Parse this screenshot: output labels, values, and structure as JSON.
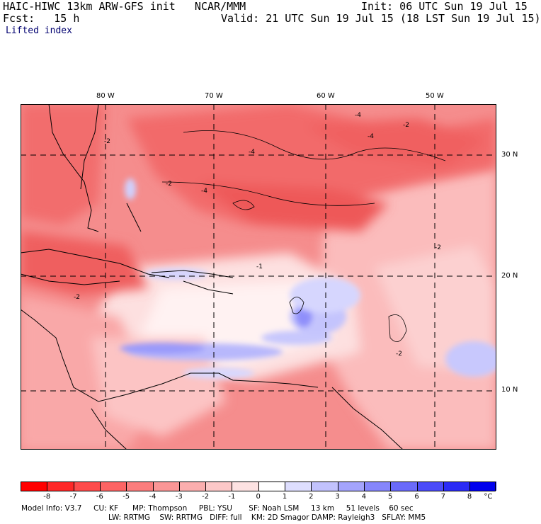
{
  "header": {
    "line1_left": "HAIC-HIWC 13km ARW-GFS init   NCAR/MMM",
    "line1_right": "Init: 06 UTC Sun 19 Jul 15",
    "line2_left": "Fcst:   15 h",
    "line2_right": "Valid: 21 UTC Sun 19 Jul 15 (18 LST Sun 19 Jul 15)",
    "field": "Lifted index"
  },
  "map": {
    "lon_labels": [
      "80 W",
      "70 W",
      "60 W",
      "50 W"
    ],
    "lat_labels": [
      "30 N",
      "20 N",
      "10 N"
    ],
    "contour_labels": [
      "-4",
      "-4",
      "-4",
      "-2",
      "-2",
      "-4",
      "-2",
      "-2",
      "-1",
      "-2",
      "-2"
    ]
  },
  "colorbar": {
    "labels": [
      "-8",
      "-7",
      "-6",
      "-5",
      "-4",
      "-3",
      "-2",
      "-1",
      "0",
      "1",
      "2",
      "3",
      "4",
      "5",
      "6",
      "7",
      "8",
      "°C"
    ],
    "colors": [
      "#ff0000",
      "#ff2828",
      "#fe4b4b",
      "#fd6464",
      "#fb7d7d",
      "#fa9696",
      "#fbaeae",
      "#fcc8c8",
      "#fde2e2",
      "#ffffff",
      "#dedefe",
      "#c2c2fd",
      "#a4a4fc",
      "#8686fb",
      "#6a6afa",
      "#4b4bf8",
      "#2b2bf5",
      "#0000ee"
    ]
  },
  "footer": {
    "line1": "Model Info: V3.7     CU: KF      MP: Thompson     PBL: YSU       SF: Noah LSM     13 km     51 levels    60 sec",
    "line2": "LW: RRTMG    SW: RRTMG   DIFF: full    KM: 2D Smagor DAMP: Rayleigh3   SFLAY: MM5"
  }
}
